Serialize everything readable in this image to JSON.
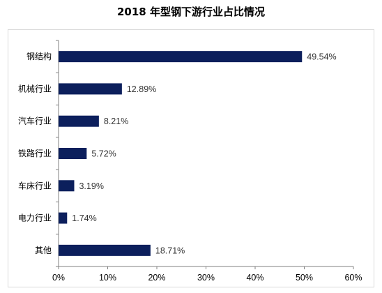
{
  "chart_data": {
    "type": "bar",
    "orientation": "horizontal",
    "title": "2018 年型钢下游行业占比情况",
    "categories": [
      "钢结构",
      "机械行业",
      "汽车行业",
      "铁路行业",
      "车床行业",
      "电力行业",
      "其他"
    ],
    "values": [
      49.54,
      12.89,
      8.21,
      5.72,
      3.19,
      1.74,
      18.71
    ],
    "value_labels": [
      "49.54%",
      "12.89%",
      "8.21%",
      "5.72%",
      "3.19%",
      "1.74%",
      "18.71%"
    ],
    "xlim": [
      0,
      60
    ],
    "x_ticks": [
      0,
      10,
      20,
      30,
      40,
      50,
      60
    ],
    "x_tick_labels": [
      "0%",
      "10%",
      "20%",
      "30%",
      "40%",
      "50%",
      "60%"
    ],
    "bar_color": "#0c1f5c",
    "grid": false,
    "legend": false
  }
}
